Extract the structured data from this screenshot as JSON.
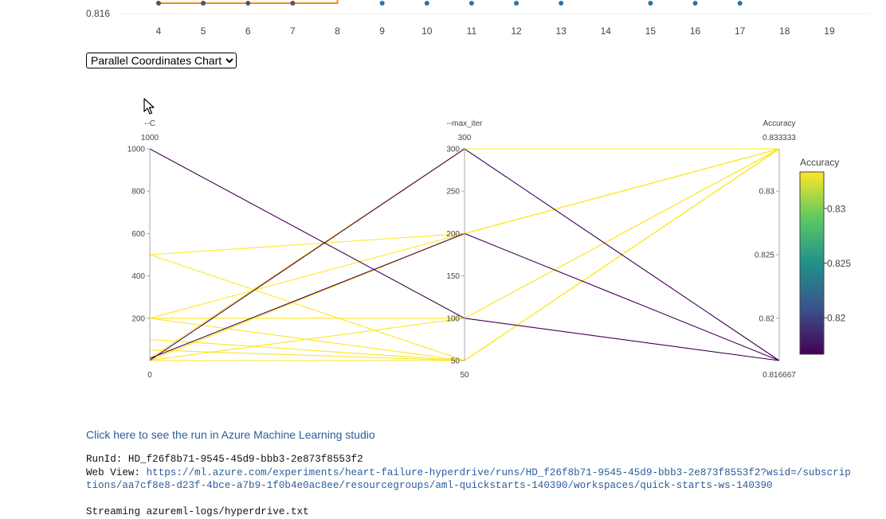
{
  "top_strip": {
    "y_tick_label": "0.816",
    "x_ticks": [
      "4",
      "5",
      "6",
      "7",
      "8",
      "9",
      "10",
      "11",
      "12",
      "13",
      "14",
      "15",
      "16",
      "17",
      "18",
      "19"
    ],
    "orange_series_points": [
      4,
      5,
      6,
      7
    ],
    "blue_series_points": [
      9,
      10,
      11,
      12,
      13,
      15,
      16,
      17
    ],
    "colors": {
      "orange": "#f28b1f",
      "blue": "#1f77b4"
    }
  },
  "chart_selector": {
    "selected": "Parallel Coordinates Chart",
    "options": [
      "Parallel Coordinates Chart"
    ]
  },
  "chart_data": {
    "type": "parallel_coordinates",
    "dimensions": [
      {
        "name": "--C",
        "top_value": "1000",
        "bottom_value": "0",
        "range": [
          0,
          1000
        ],
        "ticks": [
          {
            "v": 1000,
            "label": "1000"
          },
          {
            "v": 800,
            "label": "800"
          },
          {
            "v": 600,
            "label": "600"
          },
          {
            "v": 400,
            "label": "400"
          },
          {
            "v": 200,
            "label": "200"
          }
        ]
      },
      {
        "name": "--max_iter",
        "top_value": "300",
        "bottom_value": "50",
        "range": [
          50,
          300
        ],
        "ticks": [
          {
            "v": 300,
            "label": "300"
          },
          {
            "v": 250,
            "label": "250"
          },
          {
            "v": 200,
            "label": "200"
          },
          {
            "v": 150,
            "label": "150"
          },
          {
            "v": 100,
            "label": "100"
          },
          {
            "v": 50,
            "label": "50"
          }
        ]
      },
      {
        "name": "Accuracy",
        "top_value": "0.833333",
        "bottom_value": "0.816667",
        "range": [
          0.816667,
          0.833333
        ],
        "ticks": [
          {
            "v": 0.83,
            "label": "0.83"
          },
          {
            "v": 0.825,
            "label": "0.825"
          },
          {
            "v": 0.82,
            "label": "0.82"
          }
        ]
      }
    ],
    "lines": [
      {
        "C": 1000,
        "max_iter": 100,
        "accuracy": 0.816667
      },
      {
        "C": 1,
        "max_iter": 300,
        "accuracy": 0.816667
      },
      {
        "C": 10,
        "max_iter": 200,
        "accuracy": 0.816667
      },
      {
        "C": 500,
        "max_iter": 50,
        "accuracy": 0.833333
      },
      {
        "C": 500,
        "max_iter": 200,
        "accuracy": 0.833333
      },
      {
        "C": 200,
        "max_iter": 100,
        "accuracy": 0.833333
      },
      {
        "C": 200,
        "max_iter": 50,
        "accuracy": 0.833333
      },
      {
        "C": 200,
        "max_iter": 200,
        "accuracy": 0.833333
      },
      {
        "C": 100,
        "max_iter": 50,
        "accuracy": 0.833333
      },
      {
        "C": 50,
        "max_iter": 50,
        "accuracy": 0.833333
      },
      {
        "C": 10,
        "max_iter": 300,
        "accuracy": 0.833333
      },
      {
        "C": 1,
        "max_iter": 200,
        "accuracy": 0.833333
      },
      {
        "C": 0.5,
        "max_iter": 200,
        "accuracy": 0.833333
      },
      {
        "C": 0.1,
        "max_iter": 50,
        "accuracy": 0.833333
      },
      {
        "C": 1,
        "max_iter": 100,
        "accuracy": 0.833333
      }
    ],
    "colorbar": {
      "title": "Accuracy",
      "tick_labels": [
        {
          "v": 0.83,
          "label": "0.83"
        },
        {
          "v": 0.825,
          "label": "0.825"
        },
        {
          "v": 0.82,
          "label": "0.82"
        }
      ],
      "range": [
        0.816667,
        0.833333
      ],
      "colorscale": [
        "#440154",
        "#3b528b",
        "#21918c",
        "#5ec962",
        "#fde725"
      ]
    }
  },
  "link": {
    "text": "Click here to see the run in Azure Machine Learning studio"
  },
  "log": {
    "run_id_label": "RunId: ",
    "run_id": "HD_f26f8b71-9545-45d9-bbb3-2e873f8553f2",
    "web_view_label": "Web View: ",
    "web_view_line1": "https://ml.azure.com/experiments/heart-failure-hyperdrive/runs/HD_f26f8b71-9545-45d9-bbb3-2e873f8553f2?wsid=/subscrip",
    "web_view_line2": "tions/aa7cf8e8-d23f-4bce-a7b9-1f0b4e0ac8ee/resourcegroups/aml-quickstarts-140390/workspaces/quick-starts-ws-140390",
    "streaming": "Streaming azureml-logs/hyperdrive.txt"
  }
}
